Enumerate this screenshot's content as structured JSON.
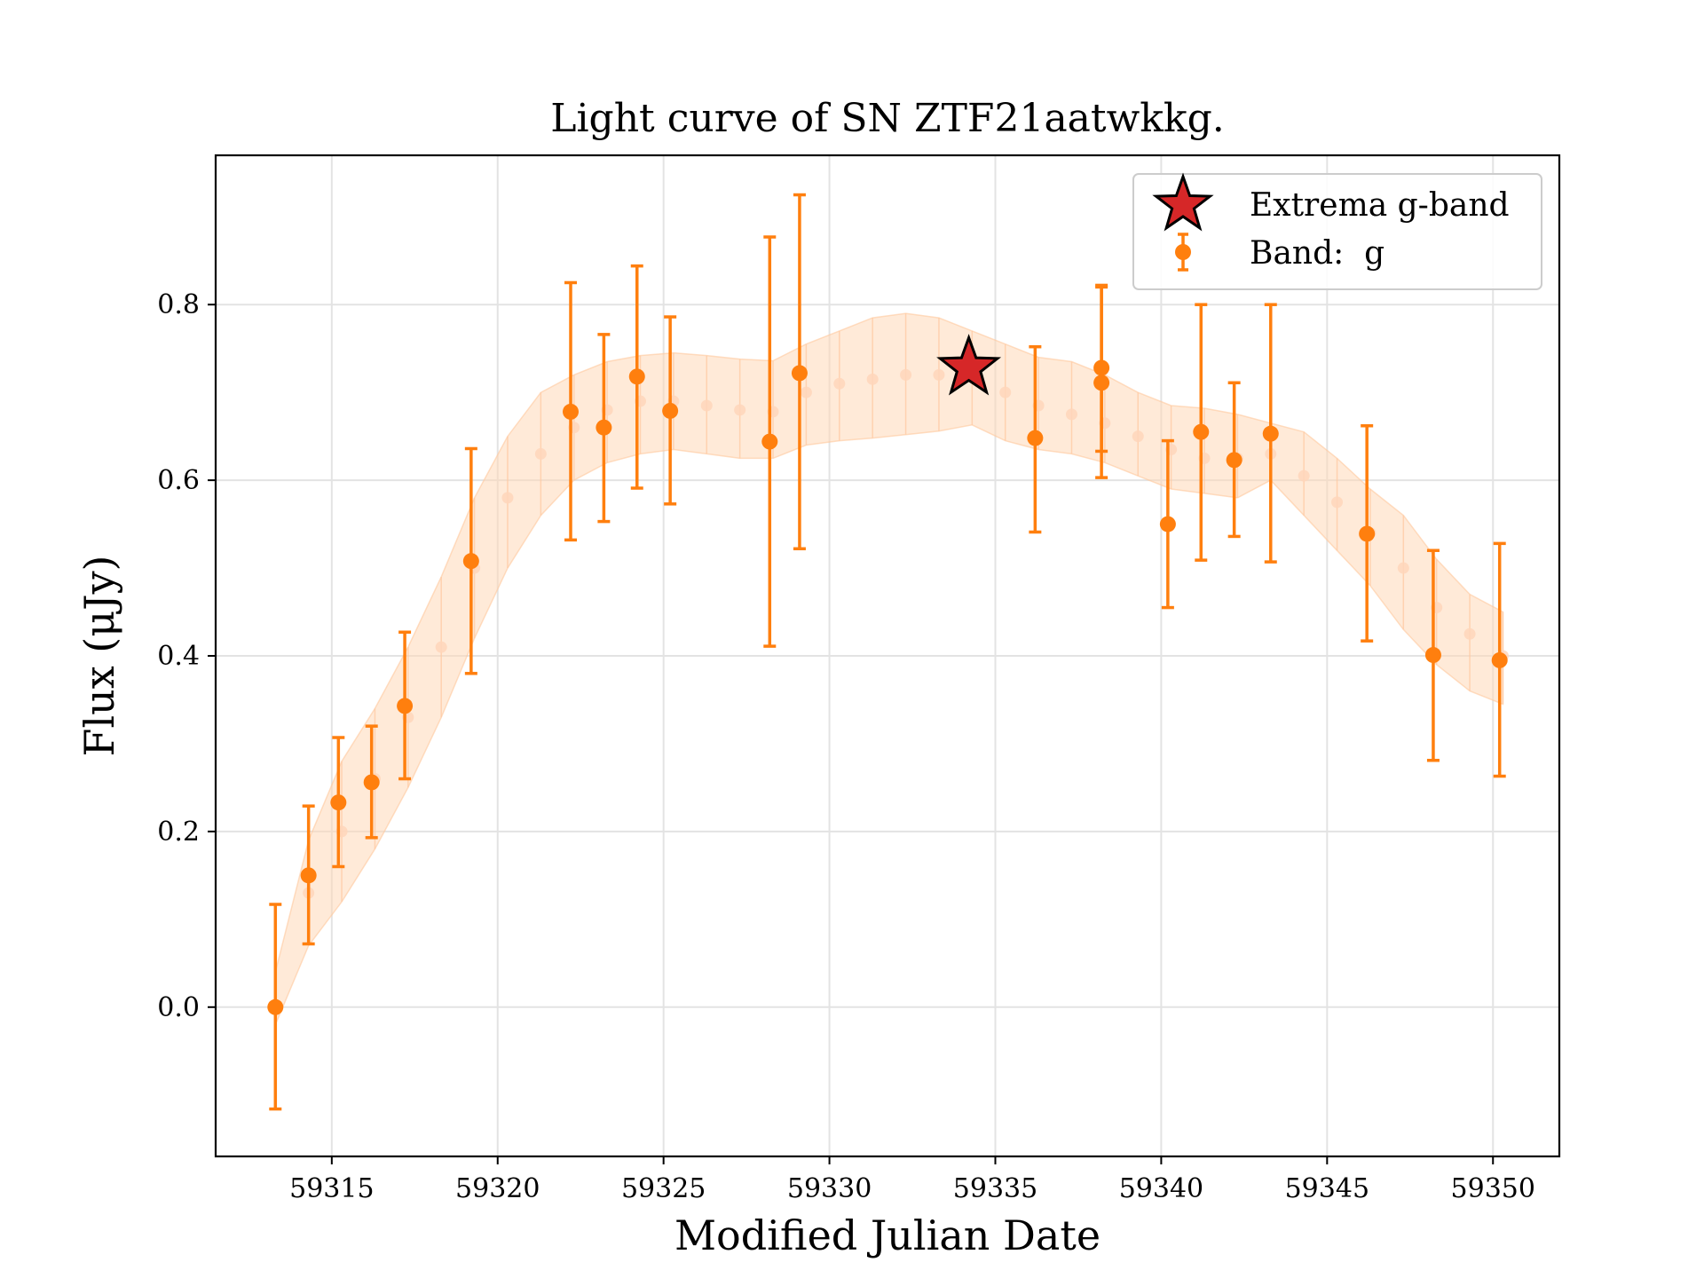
{
  "chart_data": {
    "type": "scatter",
    "title": "Light curve of SN ZTF21aatwkkg.",
    "xlabel": "Modified Julian Date",
    "ylabel": "Flux (μJy)",
    "xlim": [
      59311.5,
      59352.0
    ],
    "ylim": [
      -0.17,
      0.97
    ],
    "xticks": [
      59315,
      59320,
      59325,
      59330,
      59335,
      59340,
      59345,
      59350
    ],
    "xtick_labels": [
      "59315",
      "59320",
      "59325",
      "59330",
      "59335",
      "59340",
      "59345",
      "59350"
    ],
    "yticks": [
      0.0,
      0.2,
      0.4,
      0.6,
      0.8
    ],
    "ytick_labels": [
      "0.0",
      "0.2",
      "0.4",
      "0.6",
      "0.8"
    ],
    "grid": true,
    "legend_position": "top-right",
    "colors": {
      "band_g": "#ff7f0e",
      "extrema": "#d62728",
      "band_fill": "#ffd8b8"
    },
    "series": [
      {
        "name": "Band:  g",
        "kind": "errorbar",
        "x": [
          59313.3,
          59314.3,
          59315.2,
          59316.2,
          59317.2,
          59319.2,
          59322.2,
          59323.2,
          59324.2,
          59325.2,
          59328.2,
          59329.1,
          59336.2,
          59338.2,
          59338.2,
          59340.2,
          59341.2,
          59342.2,
          59343.3,
          59346.2,
          59348.2,
          59350.2
        ],
        "y": [
          0.0,
          0.15,
          0.233,
          0.256,
          0.343,
          0.508,
          0.678,
          0.66,
          0.718,
          0.679,
          0.644,
          0.722,
          0.648,
          0.728,
          0.711,
          0.55,
          0.655,
          0.623,
          0.653,
          0.539,
          0.401,
          0.395
        ],
        "ylow": [
          -0.116,
          0.072,
          0.16,
          0.193,
          0.26,
          0.38,
          0.532,
          0.553,
          0.591,
          0.573,
          0.411,
          0.522,
          0.541,
          0.603,
          0.633,
          0.455,
          0.509,
          0.536,
          0.507,
          0.417,
          0.281,
          0.263
        ],
        "yhigh": [
          0.117,
          0.229,
          0.307,
          0.32,
          0.427,
          0.636,
          0.825,
          0.766,
          0.844,
          0.786,
          0.877,
          0.925,
          0.752,
          0.822,
          0.82,
          0.645,
          0.8,
          0.711,
          0.8,
          0.662,
          0.52,
          0.528
        ]
      },
      {
        "name": "Extrema g-band",
        "kind": "star",
        "x": [
          59334.2
        ],
        "y": [
          0.728
        ]
      },
      {
        "name": "",
        "kind": "gp-model",
        "x": [
          59313.3,
          59314.3,
          59315.3,
          59316.3,
          59317.3,
          59318.3,
          59319.3,
          59320.3,
          59321.3,
          59322.3,
          59323.3,
          59324.3,
          59325.3,
          59326.3,
          59327.3,
          59328.3,
          59329.3,
          59330.3,
          59331.3,
          59332.3,
          59333.3,
          59334.3,
          59335.3,
          59336.3,
          59337.3,
          59338.3,
          59339.3,
          59340.3,
          59341.3,
          59342.3,
          59343.3,
          59344.3,
          59345.3,
          59346.3,
          59347.3,
          59348.3,
          59349.3,
          59350.3
        ],
        "y": [
          0.0,
          0.13,
          0.2,
          0.26,
          0.33,
          0.41,
          0.5,
          0.58,
          0.63,
          0.66,
          0.68,
          0.69,
          0.69,
          0.685,
          0.68,
          0.678,
          0.7,
          0.71,
          0.715,
          0.72,
          0.72,
          0.72,
          0.7,
          0.685,
          0.675,
          0.665,
          0.65,
          0.635,
          0.625,
          0.625,
          0.63,
          0.605,
          0.575,
          0.54,
          0.5,
          0.455,
          0.425,
          0.4
        ],
        "lower": [
          -0.02,
          0.07,
          0.12,
          0.18,
          0.25,
          0.33,
          0.42,
          0.5,
          0.56,
          0.6,
          0.62,
          0.63,
          0.635,
          0.63,
          0.625,
          0.625,
          0.64,
          0.645,
          0.648,
          0.652,
          0.656,
          0.663,
          0.645,
          0.635,
          0.63,
          0.62,
          0.605,
          0.59,
          0.585,
          0.58,
          0.6,
          0.56,
          0.52,
          0.48,
          0.43,
          0.39,
          0.36,
          0.345
        ],
        "upper": [
          0.04,
          0.19,
          0.28,
          0.34,
          0.41,
          0.49,
          0.58,
          0.65,
          0.7,
          0.72,
          0.735,
          0.742,
          0.745,
          0.742,
          0.738,
          0.736,
          0.755,
          0.77,
          0.785,
          0.79,
          0.785,
          0.77,
          0.755,
          0.74,
          0.735,
          0.72,
          0.7,
          0.685,
          0.682,
          0.675,
          0.665,
          0.655,
          0.625,
          0.59,
          0.56,
          0.51,
          0.47,
          0.45
        ]
      }
    ]
  }
}
